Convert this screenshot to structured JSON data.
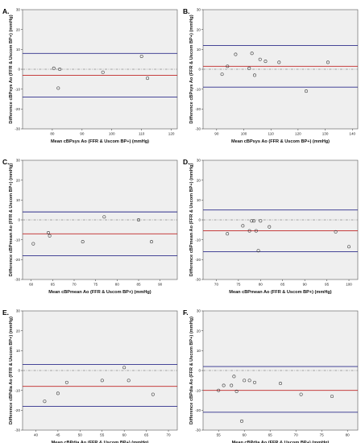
{
  "colors": {
    "upper_limit": "#2e2e8c",
    "mean_bias": "#c02626",
    "zero_line": "#8a8a8a",
    "background": "#efefef"
  },
  "chart_data": [
    {
      "type": "scatter",
      "panel": "A.",
      "xlabel": "Mean cBPsys Ao (FFR & Uscom BP+) (mmHg)",
      "ylabel": "Difference cBPsys Ao (FFR & Uscom BP+) (mmHg)",
      "xlim": [
        70,
        122
      ],
      "ylim": [
        -30,
        30
      ],
      "xticks": [
        80,
        90,
        100,
        110,
        120
      ],
      "yticks": [
        -30,
        -20,
        -10,
        0,
        10,
        20,
        30
      ],
      "points": [
        [
          80.5,
          0.5
        ],
        [
          82,
          -9.5
        ],
        [
          82.5,
          0
        ],
        [
          97,
          -1.5
        ],
        [
          110,
          6.5
        ],
        [
          112,
          -4.5
        ]
      ],
      "lines": {
        "upper": 8,
        "mean": -3,
        "lower": -14,
        "zero": 0
      }
    },
    {
      "type": "scatter",
      "panel": "B.",
      "xlabel": "Mean cBPsys Ao (FFR & Uscom BP+) (mmHg)",
      "ylabel": "Difference cBPsys Ao (FFR & Uscom BP+) (mmHg)",
      "xlim": [
        85,
        142
      ],
      "ylim": [
        -30,
        30
      ],
      "xticks": [
        90,
        100,
        110,
        120,
        130,
        140
      ],
      "yticks": [
        -30,
        -20,
        -10,
        0,
        10,
        20,
        30
      ],
      "points": [
        [
          92,
          -2.5
        ],
        [
          94,
          1.5
        ],
        [
          97,
          7.5
        ],
        [
          102,
          0.5
        ],
        [
          103,
          8
        ],
        [
          104,
          -3
        ],
        [
          106,
          5
        ],
        [
          108,
          4
        ],
        [
          113,
          3.5
        ],
        [
          123,
          -11
        ],
        [
          131,
          3.5
        ]
      ],
      "lines": {
        "upper": 12,
        "mean": 1.5,
        "lower": -9,
        "zero": 0
      }
    },
    {
      "type": "scatter",
      "panel": "C.",
      "xlabel": "Mean cBPmean Ao (FFR & Uscom BP+) (mmHg)",
      "ylabel": "Difference cBPmean Ao (FFR & Uscom BP+) (mmHg)",
      "xlim": [
        58,
        94
      ],
      "ylim": [
        -30,
        30
      ],
      "xticks": [
        60,
        65,
        70,
        75,
        80,
        85,
        90
      ],
      "yticks": [
        -30,
        -20,
        -10,
        0,
        10,
        20,
        30
      ],
      "points": [
        [
          60.5,
          -12
        ],
        [
          64,
          -6.5
        ],
        [
          64.3,
          -8
        ],
        [
          72,
          -11
        ],
        [
          77,
          1.5
        ],
        [
          85,
          0
        ],
        [
          88,
          -11
        ]
      ],
      "lines": {
        "upper": 4,
        "mean": -7,
        "lower": -18,
        "zero": 0
      }
    },
    {
      "type": "scatter",
      "panel": "D.",
      "xlabel": "Mean cBPmean Ao (FFR & Uscom BP+) (mmHg)",
      "ylabel": "Difference cBPmean Ao (FFR & Uscom BP+) (mmHg)",
      "xlim": [
        67,
        102
      ],
      "ylim": [
        -30,
        30
      ],
      "xticks": [
        70,
        75,
        80,
        85,
        90,
        95,
        100
      ],
      "yticks": [
        -30,
        -20,
        -10,
        0,
        10,
        20,
        30
      ],
      "points": [
        [
          72.5,
          -7
        ],
        [
          76,
          -3
        ],
        [
          77.5,
          -5.5
        ],
        [
          78,
          -0.5
        ],
        [
          78.5,
          -0.5
        ],
        [
          79,
          -5.5
        ],
        [
          79.5,
          -15.5
        ],
        [
          80,
          -0.5
        ],
        [
          82,
          -3.5
        ],
        [
          97,
          -6
        ],
        [
          100,
          -13.5
        ]
      ],
      "lines": {
        "upper": 5,
        "mean": -5.5,
        "lower": -16,
        "zero": 0
      }
    },
    {
      "type": "scatter",
      "panel": "E.",
      "xlabel": "Mean cBPdia Ao (FFR & Uscom BP+) (mmHg)",
      "ylabel": "Difference cBPdia Ao (FFR & Uscom BP+) (mmHg)",
      "xlim": [
        37,
        72
      ],
      "ylim": [
        -30,
        30
      ],
      "xticks": [
        40,
        45,
        50,
        55,
        60,
        65,
        70
      ],
      "yticks": [
        -30,
        -20,
        -10,
        0,
        10,
        20,
        30
      ],
      "points": [
        [
          42,
          -15.5
        ],
        [
          45,
          -11.5
        ],
        [
          47,
          -6
        ],
        [
          55,
          -5
        ],
        [
          60,
          1.5
        ],
        [
          61,
          -5
        ],
        [
          66.5,
          -12
        ]
      ],
      "lines": {
        "upper": 3,
        "mean": -8,
        "lower": -18,
        "zero": 0
      }
    },
    {
      "type": "scatter",
      "panel": "F.",
      "xlabel": "Mean cBPdia Ao (FFR & Uscom BP+) (mmHg)",
      "ylabel": "Difference cBPdia Ao (FFR & Uscom BP+) (mmHg)",
      "xlim": [
        52,
        82
      ],
      "ylim": [
        -30,
        30
      ],
      "xticks": [
        55,
        60,
        65,
        70,
        75,
        80
      ],
      "yticks": [
        -30,
        -20,
        -10,
        0,
        10,
        20,
        30
      ],
      "points": [
        [
          55,
          -10
        ],
        [
          56,
          -7.5
        ],
        [
          57.5,
          -7.5
        ],
        [
          58,
          -3
        ],
        [
          58.5,
          -10.5
        ],
        [
          59.5,
          -25.5
        ],
        [
          60,
          -5
        ],
        [
          61,
          -5
        ],
        [
          62,
          -6
        ],
        [
          67,
          -6.5
        ],
        [
          71,
          -12
        ],
        [
          77,
          -13
        ]
      ],
      "lines": {
        "upper": 2,
        "mean": -10,
        "lower": -21,
        "zero": 0
      }
    }
  ]
}
